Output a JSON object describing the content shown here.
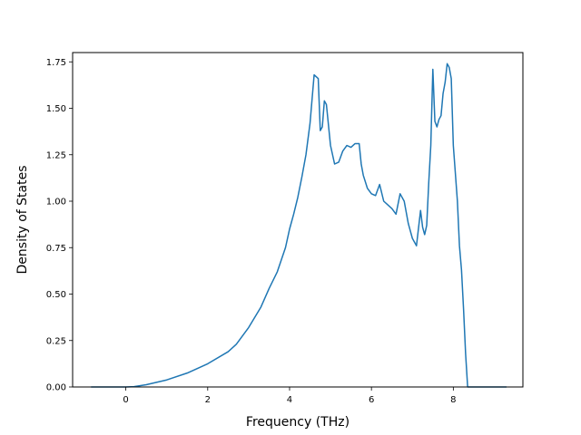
{
  "chart_data": {
    "type": "line",
    "title": "",
    "xlabel": "Frequency (THz)",
    "ylabel": "Density of States",
    "xlim": [
      -1.3,
      9.7
    ],
    "ylim": [
      0.0,
      1.8
    ],
    "xticks": [
      0,
      2,
      4,
      6,
      8
    ],
    "xtick_labels": [
      "0",
      "2",
      "4",
      "6",
      "8"
    ],
    "yticks": [
      0.0,
      0.25,
      0.5,
      0.75,
      1.0,
      1.25,
      1.5,
      1.75
    ],
    "ytick_labels": [
      "0.00",
      "0.25",
      "0.50",
      "0.75",
      "1.00",
      "1.25",
      "1.50",
      "1.75"
    ],
    "grid": false,
    "legend": "none",
    "series": [
      {
        "color": "#1f77b4",
        "x": [
          -0.85,
          0.0,
          0.2,
          0.5,
          1.0,
          1.5,
          2.0,
          2.5,
          2.7,
          3.0,
          3.3,
          3.5,
          3.7,
          3.9,
          4.0,
          4.1,
          4.2,
          4.3,
          4.4,
          4.5,
          4.6,
          4.7,
          4.75,
          4.8,
          4.85,
          4.9,
          5.0,
          5.1,
          5.2,
          5.3,
          5.4,
          5.5,
          5.6,
          5.7,
          5.75,
          5.8,
          5.9,
          6.0,
          6.1,
          6.2,
          6.3,
          6.4,
          6.5,
          6.6,
          6.7,
          6.8,
          6.9,
          7.0,
          7.1,
          7.2,
          7.25,
          7.3,
          7.35,
          7.4,
          7.45,
          7.5,
          7.55,
          7.6,
          7.65,
          7.7,
          7.75,
          7.8,
          7.85,
          7.9,
          7.95,
          8.0,
          8.05,
          8.1,
          8.15,
          8.2,
          8.25,
          8.3,
          8.35,
          8.4,
          8.45,
          8.5,
          9.3
        ],
        "y": [
          0.0,
          0.0,
          0.002,
          0.012,
          0.038,
          0.075,
          0.125,
          0.19,
          0.23,
          0.32,
          0.43,
          0.53,
          0.62,
          0.75,
          0.85,
          0.93,
          1.02,
          1.13,
          1.25,
          1.42,
          1.68,
          1.66,
          1.38,
          1.4,
          1.54,
          1.52,
          1.3,
          1.2,
          1.21,
          1.27,
          1.3,
          1.29,
          1.31,
          1.31,
          1.2,
          1.14,
          1.07,
          1.04,
          1.03,
          1.09,
          1.0,
          0.98,
          0.96,
          0.93,
          1.04,
          1.0,
          0.88,
          0.8,
          0.76,
          0.95,
          0.86,
          0.82,
          0.87,
          1.1,
          1.3,
          1.71,
          1.43,
          1.4,
          1.44,
          1.46,
          1.58,
          1.64,
          1.74,
          1.72,
          1.66,
          1.3,
          1.15,
          1.0,
          0.76,
          0.63,
          0.42,
          0.18,
          0.0,
          0.0,
          0.0,
          0.0,
          0.0
        ]
      }
    ]
  }
}
